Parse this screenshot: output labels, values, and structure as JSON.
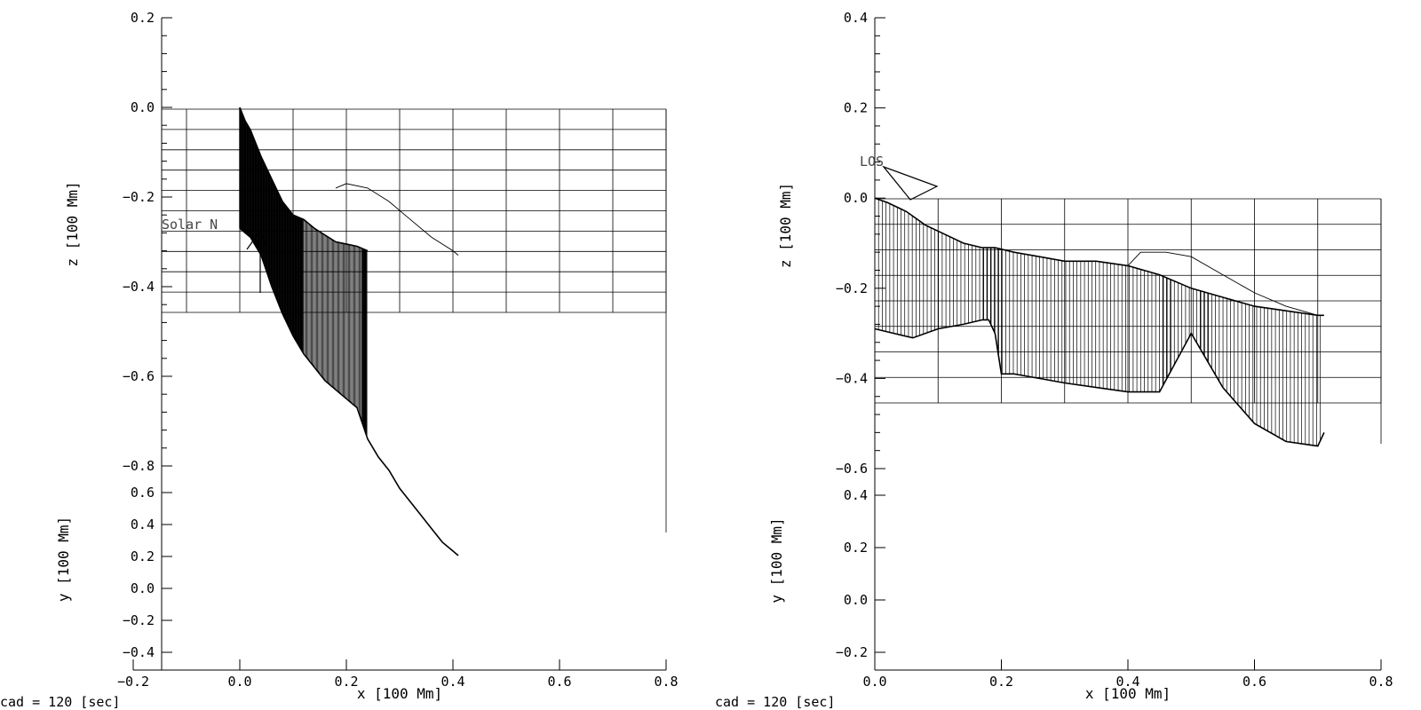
{
  "chart_data": [
    {
      "type": "line",
      "panel": "left",
      "top_plot": {
        "ylabel": "z [100 Mm]",
        "yticks": [
          "0.2",
          "0.0",
          "−0.2",
          "−0.4",
          "−0.6",
          "−0.8"
        ],
        "ylim": [
          -0.8,
          0.2
        ]
      },
      "bottom_plot": {
        "ylabel": "y [100 Mm]",
        "yticks": [
          "0.6",
          "0.4",
          "0.2",
          "0.0",
          "−0.2",
          "−0.4"
        ],
        "ylim": [
          -0.4,
          0.6
        ]
      },
      "xlabel": "x [100 Mm]",
      "xticks": [
        "−0.2",
        "0.0",
        "0.2",
        "0.4",
        "0.6",
        "0.8"
      ],
      "xlim": [
        -0.2,
        0.8
      ],
      "annotation": "Solar N",
      "footer": "cad =  120 [sec]",
      "grid": {
        "x": [
          -0.2,
          -0.1,
          0.0,
          0.1,
          0.2,
          0.3,
          0.4,
          0.5,
          0.6,
          0.7,
          0.8
        ],
        "z": [
          0.0,
          -0.045,
          -0.09,
          -0.135,
          -0.18,
          -0.225,
          -0.27,
          -0.315,
          -0.36,
          -0.405,
          -0.45
        ]
      },
      "series": [
        {
          "x": [
            0.0,
            0.01,
            0.02,
            0.04,
            0.06,
            0.08,
            0.1,
            0.12,
            0.14,
            0.18,
            0.22,
            0.24
          ],
          "z": [
            0.0,
            -0.03,
            -0.05,
            -0.11,
            -0.16,
            -0.21,
            -0.24,
            -0.25,
            -0.27,
            -0.3,
            -0.31,
            -0.32
          ]
        },
        {
          "x": [
            0.0,
            0.02,
            0.04,
            0.06,
            0.08,
            0.1,
            0.12,
            0.14,
            0.16,
            0.18,
            0.2,
            0.22,
            0.24,
            0.26,
            0.28,
            0.3,
            0.32,
            0.34,
            0.36,
            0.38,
            0.4,
            0.41
          ],
          "z": [
            -0.27,
            -0.29,
            -0.33,
            -0.4,
            -0.46,
            -0.51,
            -0.55,
            -0.58,
            -0.61,
            -0.63,
            -0.65,
            -0.67,
            -0.74,
            -0.78,
            -0.81,
            -0.85,
            -0.88,
            -0.91,
            -0.94,
            -0.97,
            -0.99,
            -1.0
          ]
        },
        {
          "x": [
            0.18,
            0.2,
            0.24,
            0.28,
            0.32,
            0.36,
            0.4,
            0.41
          ],
          "z": [
            -0.18,
            -0.17,
            -0.18,
            -0.21,
            -0.25,
            -0.29,
            -0.32,
            -0.33
          ]
        }
      ]
    },
    {
      "type": "line",
      "panel": "right",
      "top_plot": {
        "ylabel": "z [100 Mm]",
        "yticks": [
          "0.4",
          "0.2",
          "0.0",
          "−0.2",
          "−0.4",
          "−0.6"
        ],
        "ylim": [
          -0.6,
          0.4
        ]
      },
      "bottom_plot": {
        "ylabel": "y [100 Mm]",
        "yticks": [
          "0.4",
          "0.2",
          "0.0",
          "−0.2"
        ],
        "ylim": [
          -0.3,
          0.5
        ]
      },
      "xlabel": "x [100 Mm]",
      "xticks": [
        "0.0",
        "0.2",
        "0.4",
        "0.6",
        "0.8"
      ],
      "xlim": [
        0.0,
        0.8
      ],
      "annotation": "LOS",
      "footer": "cad =  120 [sec]",
      "grid": {
        "x": [
          0.0,
          0.1,
          0.2,
          0.3,
          0.4,
          0.5,
          0.6,
          0.7,
          0.8
        ],
        "z": [
          0.0,
          -0.056,
          -0.112,
          -0.168,
          -0.224,
          -0.28,
          -0.336,
          -0.392,
          -0.448
        ]
      },
      "series": [
        {
          "x": [
            0.0,
            0.02,
            0.05,
            0.08,
            0.11,
            0.14,
            0.17,
            0.19,
            0.22,
            0.26,
            0.3,
            0.35,
            0.4,
            0.45,
            0.5,
            0.55,
            0.6,
            0.65,
            0.7,
            0.71
          ],
          "z": [
            0.0,
            -0.01,
            -0.03,
            -0.06,
            -0.08,
            -0.1,
            -0.11,
            -0.11,
            -0.12,
            -0.13,
            -0.14,
            -0.14,
            -0.15,
            -0.17,
            -0.2,
            -0.22,
            -0.24,
            -0.25,
            -0.26,
            -0.26
          ]
        },
        {
          "x": [
            0.0,
            0.03,
            0.06,
            0.1,
            0.14,
            0.17,
            0.18,
            0.19,
            0.2,
            0.22,
            0.26,
            0.3,
            0.35,
            0.4,
            0.45,
            0.5,
            0.55,
            0.6,
            0.65,
            0.7,
            0.71
          ],
          "z": [
            -0.29,
            -0.3,
            -0.31,
            -0.29,
            -0.28,
            -0.27,
            -0.27,
            -0.3,
            -0.39,
            -0.39,
            -0.4,
            -0.41,
            -0.42,
            -0.43,
            -0.43,
            -0.3,
            -0.42,
            -0.5,
            -0.54,
            -0.55,
            -0.52
          ]
        },
        {
          "x": [
            0.4,
            0.42,
            0.46,
            0.5,
            0.55,
            0.6,
            0.65,
            0.7
          ],
          "z": [
            -0.15,
            -0.12,
            -0.12,
            -0.13,
            -0.17,
            -0.21,
            -0.24,
            -0.26
          ]
        }
      ]
    }
  ]
}
